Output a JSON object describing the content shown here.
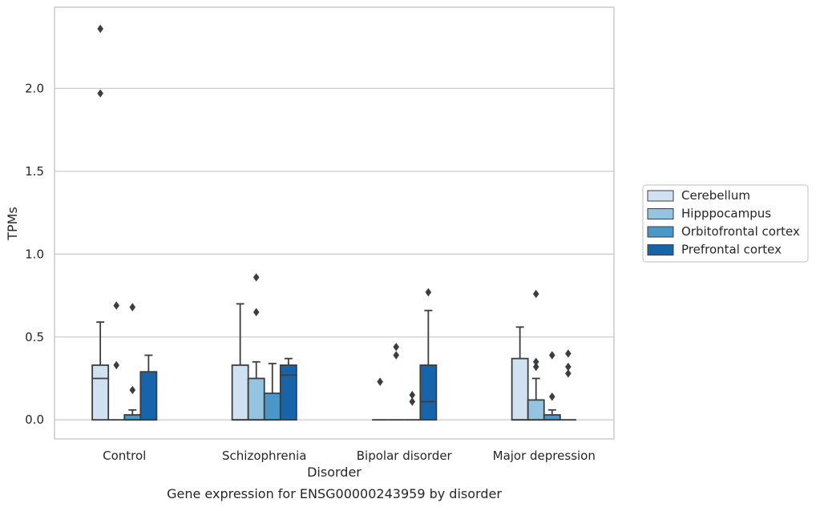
{
  "chart_data": {
    "type": "box",
    "xlabel": "Disorder",
    "ylabel": "TPMs",
    "caption": "Gene expression for ENSG00000243959 by disorder",
    "ylim": [
      -0.115,
      2.49
    ],
    "yticks": [
      0.0,
      0.5,
      1.0,
      1.5,
      2.0
    ],
    "ytick_labels": [
      "0.0",
      "0.5",
      "1.0",
      "1.5",
      "2.0"
    ],
    "grid": "horizontal",
    "legend_position": "center-right outside",
    "categories": [
      "Control",
      "Schizophrenia",
      "Bipolar disorder",
      "Major depression"
    ],
    "series": [
      {
        "name": "Cerebellum",
        "color": "#d0e1f2",
        "boxes": [
          {
            "q1": 0.0,
            "median": 0.25,
            "q3": 0.33,
            "whisker_low": 0.0,
            "whisker_high": 0.59,
            "outliers": [
              1.97,
              2.36
            ]
          },
          {
            "q1": 0.0,
            "median": 0.0,
            "q3": 0.33,
            "whisker_low": 0.0,
            "whisker_high": 0.7,
            "outliers": []
          },
          {
            "q1": 0.0,
            "median": 0.0,
            "q3": 0.0,
            "whisker_low": 0.0,
            "whisker_high": 0.0,
            "outliers": [
              0.23
            ]
          },
          {
            "q1": 0.0,
            "median": 0.0,
            "q3": 0.37,
            "whisker_low": 0.0,
            "whisker_high": 0.56,
            "outliers": []
          }
        ]
      },
      {
        "name": "Hipppocampus",
        "color": "#94c4df",
        "boxes": [
          {
            "q1": 0.0,
            "median": 0.0,
            "q3": 0.0,
            "whisker_low": 0.0,
            "whisker_high": 0.0,
            "outliers": [
              0.33,
              0.69
            ]
          },
          {
            "q1": 0.0,
            "median": 0.0,
            "q3": 0.25,
            "whisker_low": 0.0,
            "whisker_high": 0.35,
            "outliers": [
              0.65,
              0.86
            ]
          },
          {
            "q1": 0.0,
            "median": 0.0,
            "q3": 0.0,
            "whisker_low": 0.0,
            "whisker_high": 0.0,
            "outliers": [
              0.39,
              0.44
            ]
          },
          {
            "q1": 0.0,
            "median": 0.0,
            "q3": 0.12,
            "whisker_low": 0.0,
            "whisker_high": 0.25,
            "outliers": [
              0.32,
              0.35,
              0.76
            ]
          }
        ]
      },
      {
        "name": "Orbitofrontal cortex",
        "color": "#4a98c9",
        "boxes": [
          {
            "q1": 0.0,
            "median": 0.0,
            "q3": 0.03,
            "whisker_low": 0.0,
            "whisker_high": 0.06,
            "outliers": [
              0.18,
              0.68
            ]
          },
          {
            "q1": 0.0,
            "median": 0.0,
            "q3": 0.16,
            "whisker_low": 0.0,
            "whisker_high": 0.34,
            "outliers": []
          },
          {
            "q1": 0.0,
            "median": 0.0,
            "q3": 0.0,
            "whisker_low": 0.0,
            "whisker_high": 0.0,
            "outliers": [
              0.11,
              0.15
            ]
          },
          {
            "q1": 0.0,
            "median": 0.0,
            "q3": 0.03,
            "whisker_low": 0.0,
            "whisker_high": 0.06,
            "outliers": [
              0.14,
              0.39
            ]
          }
        ]
      },
      {
        "name": "Prefrontal cortex",
        "color": "#1764ab",
        "boxes": [
          {
            "q1": 0.0,
            "median": 0.0,
            "q3": 0.29,
            "whisker_low": 0.0,
            "whisker_high": 0.39,
            "outliers": []
          },
          {
            "q1": 0.0,
            "median": 0.27,
            "q3": 0.33,
            "whisker_low": 0.0,
            "whisker_high": 0.37,
            "outliers": []
          },
          {
            "q1": 0.0,
            "median": 0.11,
            "q3": 0.33,
            "whisker_low": 0.0,
            "whisker_high": 0.66,
            "outliers": [
              0.77
            ]
          },
          {
            "q1": 0.0,
            "median": 0.0,
            "q3": 0.0,
            "whisker_low": 0.0,
            "whisker_high": 0.0,
            "outliers": [
              0.28,
              0.32,
              0.4
            ]
          }
        ]
      }
    ]
  }
}
